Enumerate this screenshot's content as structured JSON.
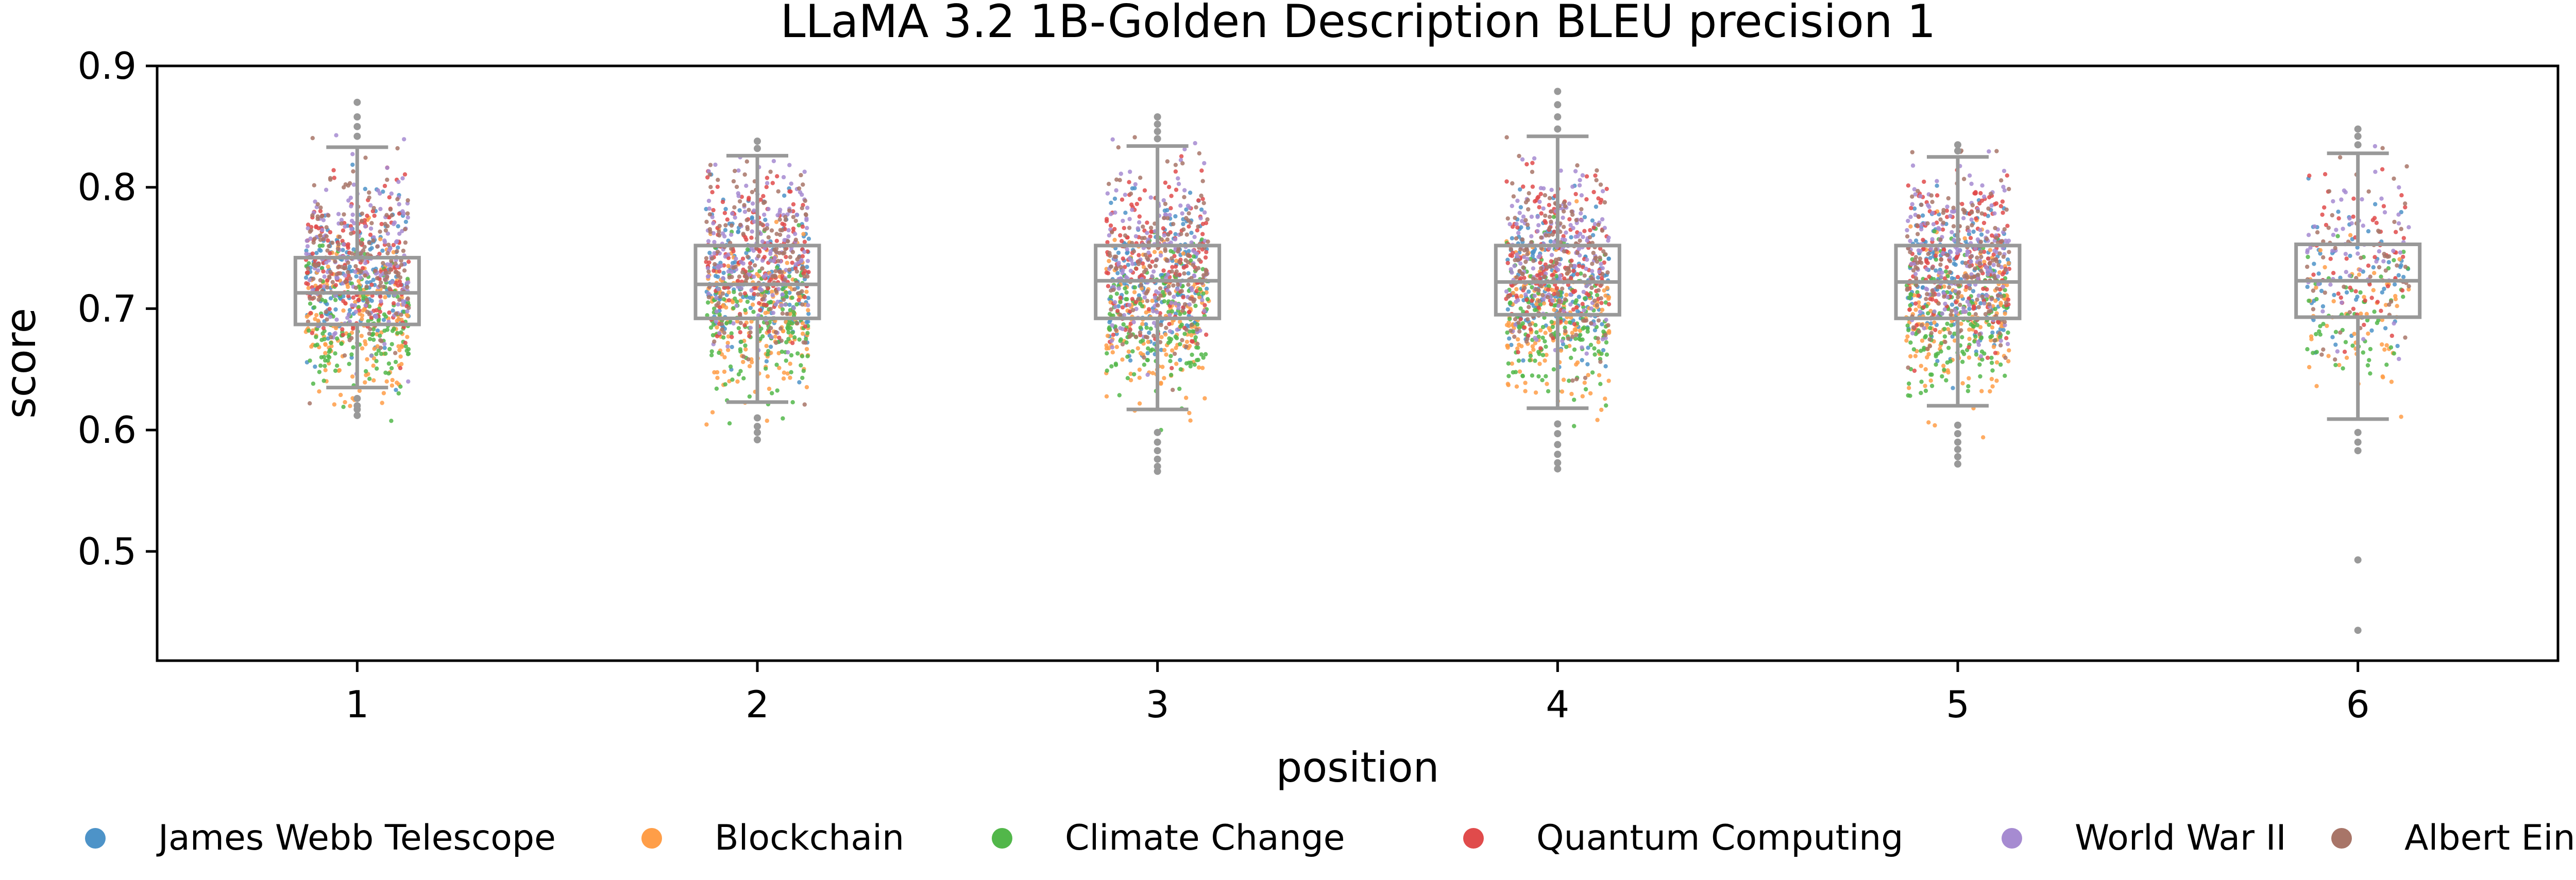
{
  "chart_data": {
    "type": "box-strip",
    "title": "LLaMA 3.2 1B-Golden Description BLEU precision 1",
    "xlabel": "position",
    "ylabel": "score",
    "categories": [
      "1",
      "2",
      "3",
      "4",
      "5",
      "6"
    ],
    "ylim": [
      0.41,
      0.9
    ],
    "yticks": [
      0.5,
      0.6,
      0.7,
      0.8,
      0.9
    ],
    "ytick_labels": [
      "0.5",
      "0.6",
      "0.7",
      "0.8",
      "0.9"
    ],
    "grid": false,
    "legend_position": "bottom",
    "box_color": "#999999",
    "boxes": [
      {
        "position": "1",
        "whisker_low": 0.635,
        "q1": 0.687,
        "median": 0.713,
        "q3": 0.742,
        "whisker_high": 0.833,
        "outliers": [
          0.612,
          0.617,
          0.62,
          0.626,
          0.842,
          0.85,
          0.858,
          0.87
        ]
      },
      {
        "position": "2",
        "whisker_low": 0.623,
        "q1": 0.692,
        "median": 0.72,
        "q3": 0.752,
        "whisker_high": 0.826,
        "outliers": [
          0.592,
          0.598,
          0.603,
          0.61,
          0.832,
          0.838
        ]
      },
      {
        "position": "3",
        "whisker_low": 0.617,
        "q1": 0.692,
        "median": 0.723,
        "q3": 0.752,
        "whisker_high": 0.834,
        "outliers": [
          0.566,
          0.57,
          0.576,
          0.583,
          0.59,
          0.598,
          0.84,
          0.846,
          0.852,
          0.858
        ]
      },
      {
        "position": "4",
        "whisker_low": 0.618,
        "q1": 0.695,
        "median": 0.722,
        "q3": 0.752,
        "whisker_high": 0.842,
        "outliers": [
          0.568,
          0.573,
          0.58,
          0.588,
          0.597,
          0.605,
          0.848,
          0.858,
          0.868,
          0.879
        ]
      },
      {
        "position": "5",
        "whisker_low": 0.62,
        "q1": 0.692,
        "median": 0.722,
        "q3": 0.752,
        "whisker_high": 0.825,
        "outliers": [
          0.572,
          0.578,
          0.584,
          0.59,
          0.597,
          0.604,
          0.83,
          0.835
        ]
      },
      {
        "position": "6",
        "whisker_low": 0.609,
        "q1": 0.693,
        "median": 0.723,
        "q3": 0.753,
        "whisker_high": 0.828,
        "outliers": [
          0.435,
          0.493,
          0.583,
          0.59,
          0.598,
          0.835,
          0.842,
          0.848
        ]
      }
    ],
    "series": [
      {
        "name": "James Webb Telescope",
        "color": "#4d93c8",
        "points_per_position": [
          160,
          160,
          150,
          160,
          160,
          55
        ],
        "range": [
          0.63,
          0.84
        ],
        "center": 0.725
      },
      {
        "name": "Blockchain",
        "color": "#ff9e48",
        "points_per_position": [
          160,
          160,
          150,
          160,
          160,
          55
        ],
        "range": [
          0.59,
          0.8
        ],
        "center": 0.69
      },
      {
        "name": "Climate Change",
        "color": "#52b74a",
        "points_per_position": [
          160,
          160,
          150,
          160,
          160,
          55
        ],
        "range": [
          0.6,
          0.8
        ],
        "center": 0.69
      },
      {
        "name": "Quantum Computing",
        "color": "#e04b4b",
        "points_per_position": [
          160,
          160,
          150,
          160,
          160,
          55
        ],
        "range": [
          0.63,
          0.85
        ],
        "center": 0.74
      },
      {
        "name": "World War II",
        "color": "#a68bd1",
        "points_per_position": [
          160,
          160,
          150,
          160,
          160,
          55
        ],
        "range": [
          0.64,
          0.86
        ],
        "center": 0.745
      },
      {
        "name": "Albert Einstein",
        "color": "#a87568",
        "points_per_position": [
          160,
          160,
          150,
          160,
          160,
          55
        ],
        "range": [
          0.62,
          0.86
        ],
        "center": 0.74
      }
    ]
  }
}
